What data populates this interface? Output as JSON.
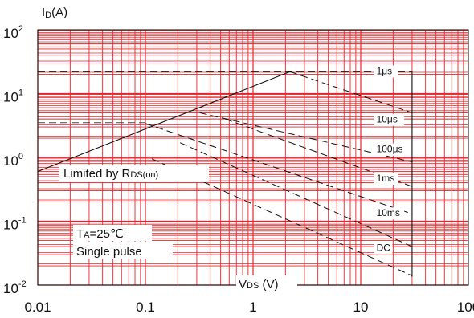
{
  "chart_data": {
    "type": "line",
    "title": "",
    "xlabel": {
      "main": "V",
      "sub": "DS",
      "unit": " (V)"
    },
    "ylabel": {
      "main": "I",
      "sub": "D",
      "unit": "(A)"
    },
    "x_scale": "log",
    "y_scale": "log",
    "xlim": [
      0.01,
      100
    ],
    "ylim": [
      0.01,
      100
    ],
    "grid": true,
    "x_ticks": [
      {
        "value": 0.01,
        "label": "0.01"
      },
      {
        "value": 0.1,
        "label": "0.1"
      },
      {
        "value": 1,
        "label": "1"
      },
      {
        "value": 10,
        "label": "10"
      },
      {
        "value": 100,
        "label": "100"
      }
    ],
    "y_ticks": [
      {
        "value": 0.01,
        "base": "10",
        "exp": "-2"
      },
      {
        "value": 0.1,
        "base": "10",
        "exp": "-1"
      },
      {
        "value": 1,
        "base": "10",
        "exp": "0"
      },
      {
        "value": 10,
        "base": "10",
        "exp": "1"
      },
      {
        "value": 100,
        "base": "10",
        "exp": "2"
      }
    ],
    "limit_line": {
      "points": [
        [
          0.01,
          0.6
        ],
        [
          2.2,
          22
        ]
      ]
    },
    "max_current": {
      "value": 22,
      "x_to": 30
    },
    "pulse_current": {
      "value": 3.5
    },
    "voltage_limit": {
      "value": 30,
      "y_from": 0.0135,
      "y_to": 22
    },
    "series": [
      {
        "name": "1μs",
        "style": "dashed",
        "points": [
          [
            2.2,
            22
          ],
          [
            30,
            5
          ]
        ]
      },
      {
        "name": "10μs",
        "style": "dashed",
        "points": [
          [
            0.32,
            5
          ],
          [
            30,
            0.85
          ]
        ]
      },
      {
        "name": "100μs",
        "style": "dashed",
        "points": [
          [
            0.55,
            4
          ],
          [
            30,
            0.35
          ]
        ]
      },
      {
        "name": "1ms",
        "style": "dashed",
        "points": [
          [
            0.1,
            3.4
          ],
          [
            30,
            0.13
          ]
        ]
      },
      {
        "name": "10ms",
        "style": "dashed",
        "points": [
          [
            0.21,
            1.7
          ],
          [
            30,
            0.04
          ]
        ]
      },
      {
        "name": "DC",
        "style": "dashed",
        "points": [
          [
            0.115,
            0.95
          ],
          [
            30,
            0.014
          ]
        ]
      }
    ],
    "curve_labels": [
      {
        "text": "1μs",
        "at": [
          14,
          20
        ]
      },
      {
        "text": "10μs",
        "at": [
          14,
          3.5
        ]
      },
      {
        "text": "100μs",
        "at": [
          14,
          1.2
        ]
      },
      {
        "text": "1ms",
        "at": [
          14,
          0.42
        ]
      },
      {
        "text": "10ms",
        "at": [
          14,
          0.12
        ]
      },
      {
        "text": "DC",
        "at": [
          14,
          0.034
        ]
      }
    ],
    "annotations": {
      "limited_main": "Limited by R",
      "limited_sub": "DS(on)",
      "temp_main": "T",
      "temp_sub": "A",
      "temp_value": "=25℃",
      "pulse_text": "Single pulse"
    }
  }
}
